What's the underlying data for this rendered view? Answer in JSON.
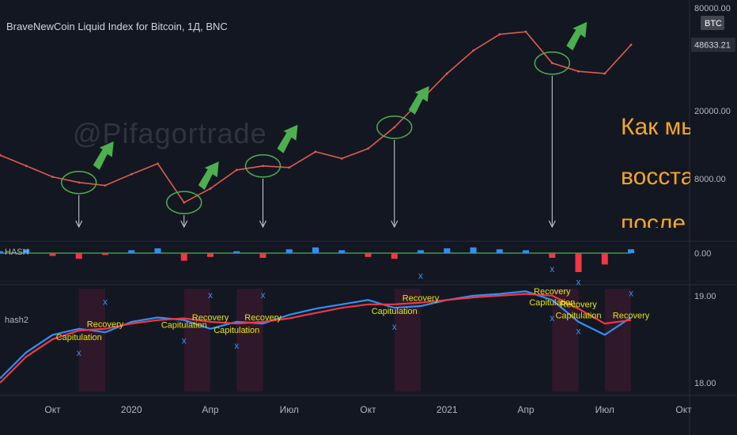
{
  "header": {
    "title": "BraveNewCoin Liquid Index for Bitcoin, 1Д, BNC"
  },
  "watermark": "@Pifagortrade",
  "overlay_text": {
    "line1": "Как мы л",
    "line2": "восстанс",
    "line3": "после ег"
  },
  "colors": {
    "background": "#131722",
    "price_line": "#e05a4f",
    "arrow": "#4caf50",
    "annotation": "#f5a623",
    "hash_fast": "#2f8ff5",
    "hash_slow": "#f23645",
    "hist_pos": "#2f8ff5",
    "hist_neg": "#f23645",
    "hash_line": "#4caf50",
    "label_yellow": "#e6e600",
    "axis_text": "#b2b5be"
  },
  "chart_data": [
    {
      "type": "line",
      "pane": "price",
      "title": "BraveNewCoin Liquid Index for Bitcoin, 1Д, BNC",
      "scale": "log",
      "y_ticks": [
        "80000.00",
        "20000.00",
        "8000.00"
      ],
      "last_value_label": "48633.21",
      "symbol_badge": "BTC",
      "x_ticks": [
        "Окт",
        "2020",
        "Апр",
        "Июл",
        "Окт",
        "2021",
        "Апр",
        "Июл",
        "Окт"
      ],
      "series": [
        {
          "x": [
            "2019-08",
            "2019-09",
            "2019-10",
            "2019-11",
            "2019-12",
            "2020-01",
            "2020-02",
            "2020-03",
            "2020-04",
            "2020-05",
            "2020-06",
            "2020-07",
            "2020-08",
            "2020-09",
            "2020-10",
            "2020-11",
            "2020-12",
            "2021-01",
            "2021-02",
            "2021-03",
            "2021-04",
            "2021-05",
            "2021-06",
            "2021-07",
            "2021-08"
          ],
          "values": [
            11000,
            9500,
            8200,
            7600,
            7300,
            8500,
            9800,
            5800,
            7000,
            9000,
            9500,
            9300,
            11500,
            10500,
            12000,
            16000,
            23000,
            33000,
            45000,
            56000,
            58000,
            38000,
            34000,
            33000,
            48633
          ]
        }
      ]
    },
    {
      "type": "bar",
      "pane": "HASH",
      "y_ticks": [
        "0.00"
      ],
      "series": [
        {
          "name": "HASH",
          "values": [
            0.2,
            0.4,
            -0.3,
            -0.6,
            -0.2,
            0.3,
            0.5,
            -0.8,
            -0.4,
            0.2,
            -0.5,
            0.4,
            0.6,
            0.3,
            -0.4,
            -0.6,
            0.3,
            0.5,
            0.6,
            0.4,
            0.3,
            -0.5,
            -2.0,
            -1.2,
            0.4
          ]
        }
      ]
    },
    {
      "type": "line",
      "pane": "hash2",
      "y_ticks": [
        "19.00",
        "18.00"
      ],
      "series": [
        {
          "name": "hash2",
          "values": [
            18.05,
            18.35,
            18.55,
            18.62,
            18.58,
            18.7,
            18.75,
            18.72,
            18.62,
            18.7,
            18.68,
            18.78,
            18.85,
            18.9,
            18.95,
            18.86,
            18.88,
            18.95,
            19.0,
            19.02,
            19.05,
            18.95,
            18.7,
            18.55,
            18.75
          ]
        },
        {
          "values": [
            18.0,
            18.3,
            18.5,
            18.6,
            18.62,
            18.68,
            18.72,
            18.74,
            18.7,
            18.68,
            18.7,
            18.74,
            18.8,
            18.86,
            18.9,
            18.9,
            18.92,
            18.95,
            18.98,
            19.0,
            19.02,
            19.0,
            18.85,
            18.68,
            18.72
          ]
        }
      ],
      "markers": [
        {
          "text": "Capitulation",
          "x": "2019-11"
        },
        {
          "text": "Recovery",
          "x": "2019-12"
        },
        {
          "text": "Capitulation",
          "x": "2020-03"
        },
        {
          "text": "Recovery",
          "x": "2020-04"
        },
        {
          "text": "Capitulation",
          "x": "2020-05"
        },
        {
          "text": "Recovery",
          "x": "2020-06"
        },
        {
          "text": "Capitulation",
          "x": "2020-11"
        },
        {
          "text": "Recovery",
          "x": "2020-12"
        },
        {
          "text": "Capitulation",
          "x": "2021-05"
        },
        {
          "text": "Recovery",
          "x": "2021-05"
        },
        {
          "text": "Recovery",
          "x": "2021-06"
        },
        {
          "text": "Capitulation",
          "x": "2021-06"
        },
        {
          "text": "Recovery",
          "x": "2021-08"
        }
      ]
    }
  ]
}
